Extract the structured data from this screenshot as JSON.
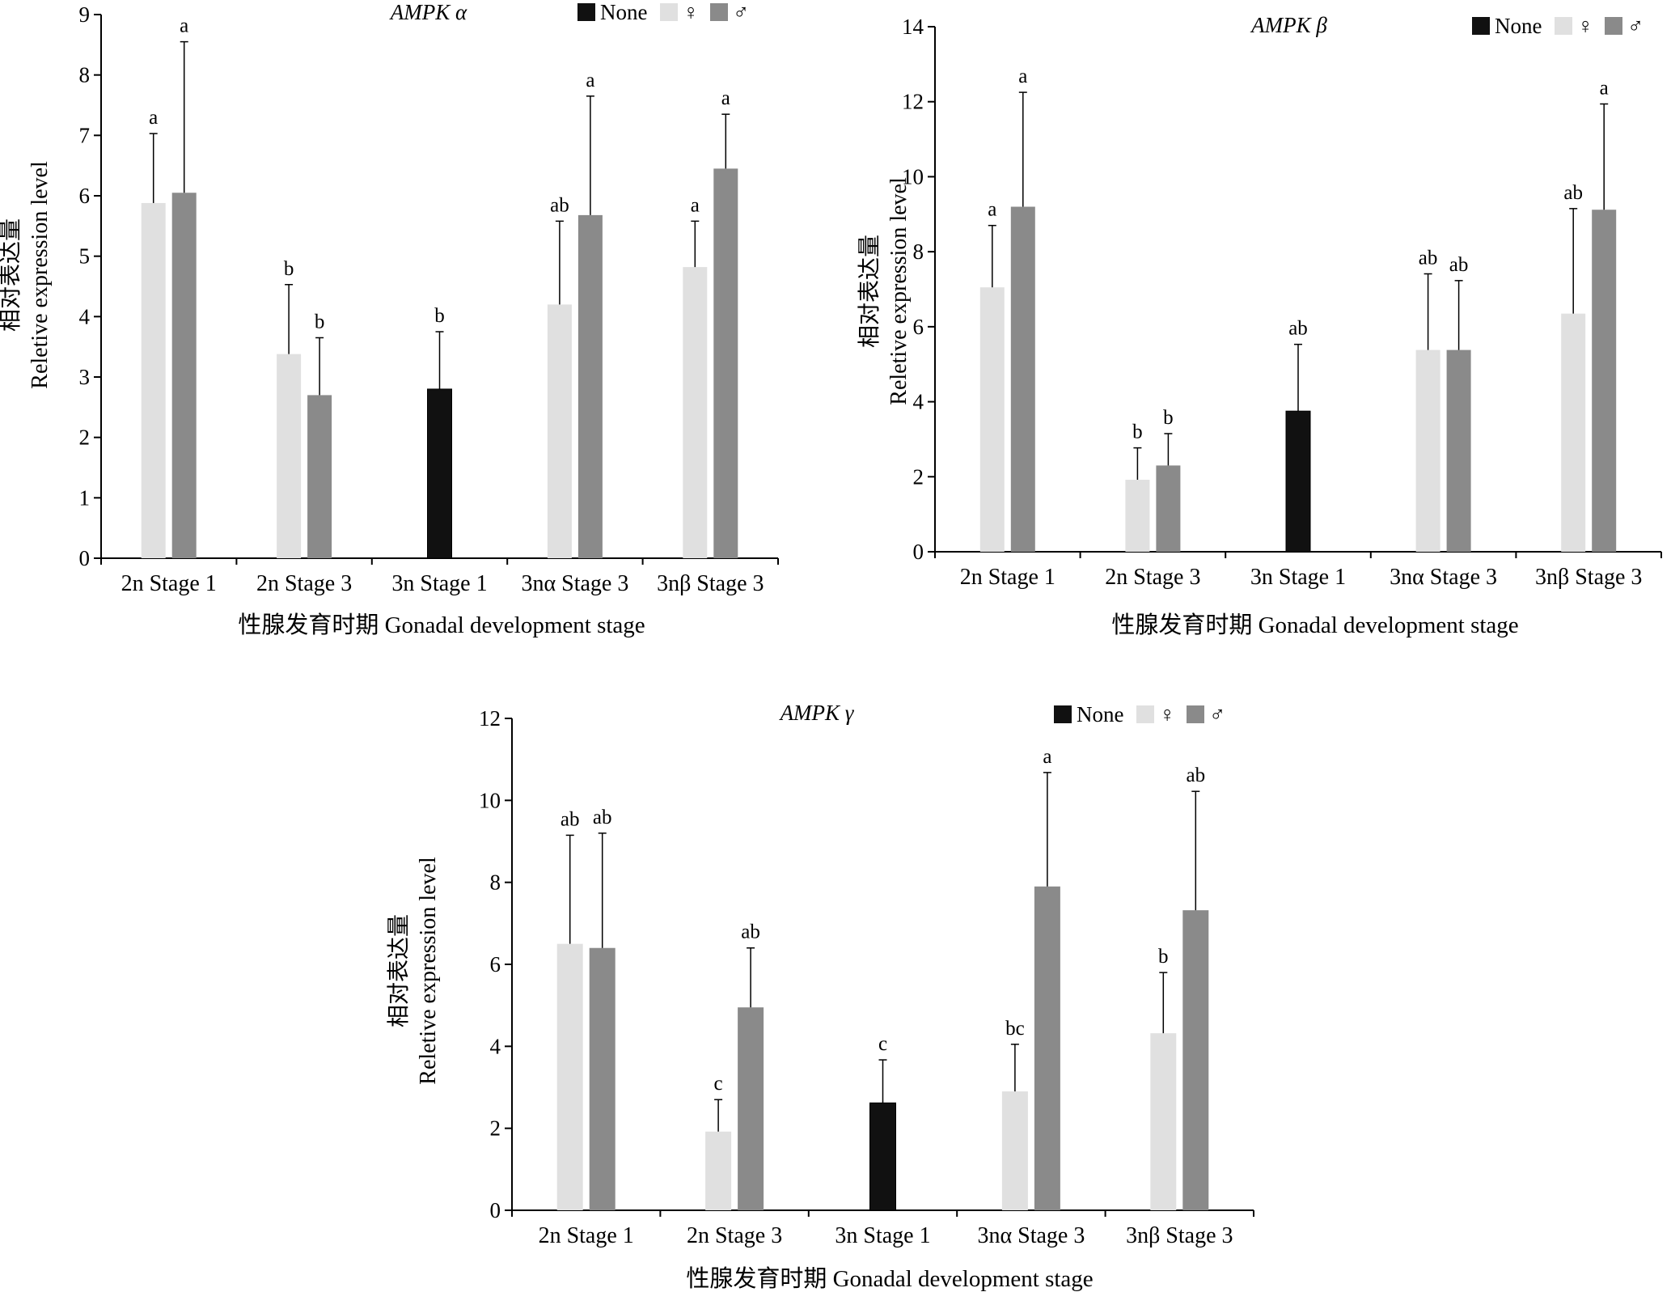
{
  "chart_data": [
    {
      "type": "bar",
      "title": "AMPK α",
      "xlabel": "性腺发育时期 Gonadal development stage",
      "ylabel_cn": "相对表达量",
      "ylabel_en": "Reletive expression level",
      "ylim": [
        0,
        9
      ],
      "yticks": [
        0,
        1,
        2,
        3,
        4,
        5,
        6,
        7,
        8,
        9
      ],
      "categories": [
        "2n Stage 1",
        "2n Stage 3",
        "3n Stage 1",
        "3nα Stage 3",
        "3nβ Stage 3"
      ],
      "legend": {
        "position": "top-right",
        "entries": [
          "None",
          "♀",
          "♂"
        ]
      },
      "series": [
        {
          "name": "None",
          "color": "#111111",
          "values": [
            null,
            null,
            2.8,
            null,
            null
          ],
          "errors": [
            null,
            null,
            0.95,
            null,
            null
          ],
          "labels": [
            null,
            null,
            "b",
            null,
            null
          ]
        },
        {
          "name": "♀",
          "color": "#e0e0e0",
          "values": [
            5.88,
            3.38,
            null,
            4.2,
            4.82
          ],
          "errors": [
            1.15,
            1.15,
            null,
            1.38,
            0.76
          ],
          "labels": [
            "a",
            "b",
            null,
            "ab",
            "a"
          ]
        },
        {
          "name": "♂",
          "color": "#8a8a8a",
          "values": [
            6.05,
            2.7,
            null,
            5.68,
            6.45
          ],
          "errors": [
            2.5,
            0.95,
            null,
            1.97,
            0.9
          ],
          "labels": [
            "a",
            "b",
            null,
            "a",
            "a"
          ]
        }
      ]
    },
    {
      "type": "bar",
      "title": "AMPK β",
      "xlabel": "性腺发育时期 Gonadal development stage",
      "ylabel_cn": "相对表达量",
      "ylabel_en": "Reletive expression level",
      "ylim": [
        0,
        14
      ],
      "yticks": [
        0,
        2,
        4,
        6,
        8,
        10,
        12,
        14
      ],
      "categories": [
        "2n Stage 1",
        "2n Stage 3",
        "3n Stage 1",
        "3nα Stage 3",
        "3nβ Stage 3"
      ],
      "legend": {
        "position": "top-right",
        "entries": [
          "None",
          "♀",
          "♂"
        ]
      },
      "series": [
        {
          "name": "None",
          "color": "#111111",
          "values": [
            null,
            null,
            3.75,
            null,
            null
          ],
          "errors": [
            null,
            null,
            1.78,
            null,
            null
          ],
          "labels": [
            null,
            null,
            "ab",
            null,
            null
          ]
        },
        {
          "name": "♀",
          "color": "#e0e0e0",
          "values": [
            7.05,
            1.92,
            null,
            5.38,
            6.35
          ],
          "errors": [
            1.65,
            0.85,
            null,
            2.03,
            2.8
          ],
          "labels": [
            "a",
            "b",
            null,
            "ab",
            "ab"
          ]
        },
        {
          "name": "♂",
          "color": "#8a8a8a",
          "values": [
            9.2,
            2.3,
            null,
            5.38,
            9.12
          ],
          "errors": [
            3.05,
            0.85,
            null,
            1.85,
            2.82
          ],
          "labels": [
            "a",
            "b",
            null,
            "ab",
            "a"
          ]
        }
      ]
    },
    {
      "type": "bar",
      "title": "AMPK γ",
      "xlabel": "性腺发育时期 Gonadal development stage",
      "ylabel_cn": "相对表达量",
      "ylabel_en": "Reletive expression level",
      "ylim": [
        0,
        12
      ],
      "yticks": [
        0,
        2,
        4,
        6,
        8,
        10,
        12
      ],
      "categories": [
        "2n Stage 1",
        "2n Stage 3",
        "3n Stage 1",
        "3nα Stage 3",
        "3nβ Stage 3"
      ],
      "legend": {
        "position": "top-right",
        "entries": [
          "None",
          "♀",
          "♂"
        ]
      },
      "series": [
        {
          "name": "None",
          "color": "#111111",
          "values": [
            null,
            null,
            2.62,
            null,
            null
          ],
          "errors": [
            null,
            null,
            1.05,
            null,
            null
          ],
          "labels": [
            null,
            null,
            "c",
            null,
            null
          ]
        },
        {
          "name": "♀",
          "color": "#e0e0e0",
          "values": [
            6.5,
            1.92,
            null,
            2.9,
            4.32
          ],
          "errors": [
            2.65,
            0.78,
            null,
            1.15,
            1.48
          ],
          "labels": [
            "ab",
            "c",
            null,
            "bc",
            "b"
          ]
        },
        {
          "name": "♂",
          "color": "#8a8a8a",
          "values": [
            6.4,
            4.95,
            null,
            7.9,
            7.32
          ],
          "errors": [
            2.8,
            1.45,
            null,
            2.78,
            2.9
          ],
          "labels": [
            "ab",
            "ab",
            null,
            "a",
            "ab"
          ]
        }
      ]
    }
  ]
}
